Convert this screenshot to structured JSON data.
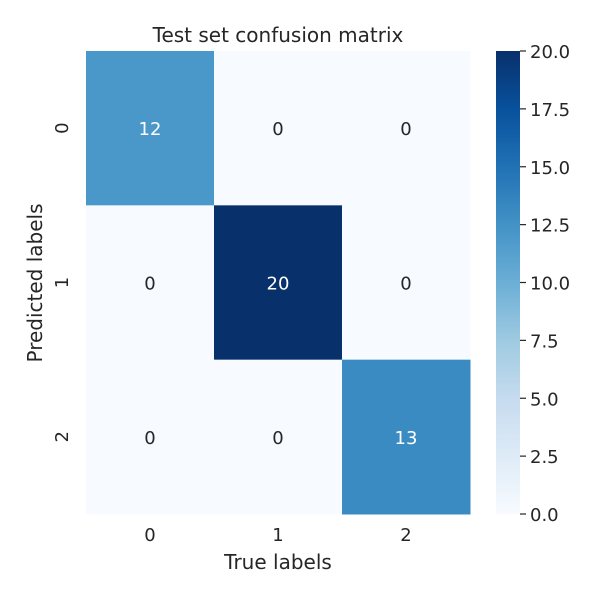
{
  "chart_data": {
    "type": "heatmap",
    "title": "Test set confusion matrix",
    "xlabel": "True labels",
    "ylabel": "Predicted labels",
    "x_categories": [
      "0",
      "1",
      "2"
    ],
    "y_categories": [
      "0",
      "1",
      "2"
    ],
    "values": [
      [
        12,
        0,
        0
      ],
      [
        0,
        20,
        0
      ],
      [
        0,
        0,
        13
      ]
    ],
    "colormap": "Blues",
    "vmin": 0,
    "vmax": 20,
    "colorbar_ticks": [
      "0.0",
      "2.5",
      "5.0",
      "7.5",
      "10.0",
      "12.5",
      "15.0",
      "17.5",
      "20.0"
    ],
    "grid": false
  }
}
